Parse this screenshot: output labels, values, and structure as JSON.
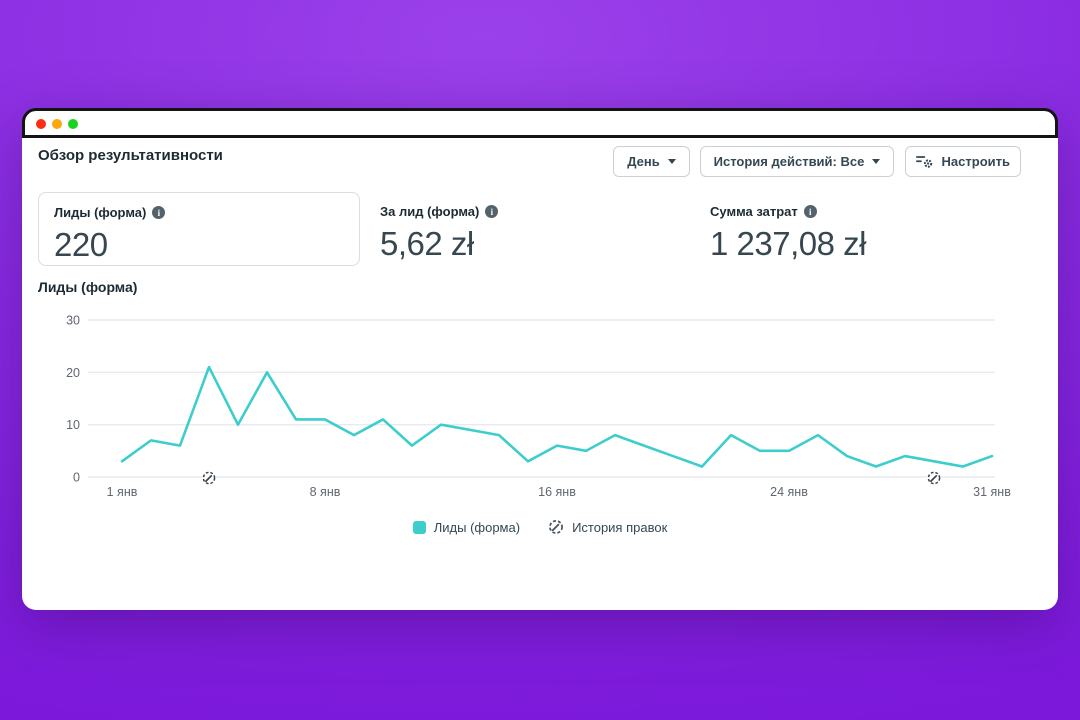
{
  "header": {
    "title": "Обзор результативности",
    "controls": {
      "period_dropdown": "День",
      "history_dropdown": "История действий: Все",
      "customize_button": "Настроить"
    }
  },
  "metrics": [
    {
      "label": "Лиды (форма)",
      "value": "220",
      "selected": true
    },
    {
      "label": "За лид (форма)",
      "value": "5,62 zł",
      "selected": false
    },
    {
      "label": "Сумма затрат",
      "value": "1 237,08 zł",
      "selected": false
    }
  ],
  "chart_data": {
    "type": "line",
    "title": "Лиды (форма)",
    "series_name": "Лиды (форма)",
    "x": [
      1,
      2,
      3,
      4,
      5,
      6,
      7,
      8,
      9,
      10,
      11,
      12,
      13,
      14,
      15,
      16,
      17,
      18,
      19,
      20,
      21,
      22,
      23,
      24,
      25,
      26,
      27,
      28,
      29,
      30,
      31
    ],
    "values": [
      3,
      7,
      6,
      21,
      10,
      20,
      11,
      11,
      8,
      11,
      6,
      10,
      9,
      8,
      3,
      6,
      5,
      8,
      6,
      4,
      2,
      8,
      5,
      5,
      8,
      4,
      2,
      4,
      3,
      2,
      4
    ],
    "x_tick_labels": [
      "1 янв",
      "8 янв",
      "16 янв",
      "24 янв",
      "31 янв"
    ],
    "x_tick_days": [
      1,
      8,
      16,
      24,
      31
    ],
    "yticks": [
      0,
      10,
      20,
      30
    ],
    "ylim": [
      0,
      30
    ],
    "grid": true,
    "line_color": "#3dcdcd",
    "axis_label_color": "#606770",
    "gridline_color": "#e8eaec",
    "edit_history_days": [
      4,
      29
    ],
    "legend_position": "bottom",
    "legend": {
      "series": "Лиды (форма)",
      "edit_history": "История правок"
    }
  }
}
